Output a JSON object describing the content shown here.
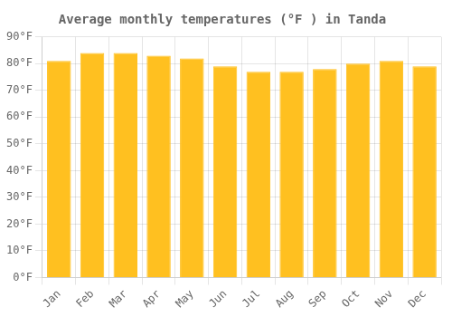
{
  "chart_data": {
    "type": "bar",
    "title": "Average monthly temperatures (°F ) in Tanda",
    "categories": [
      "Jan",
      "Feb",
      "Mar",
      "Apr",
      "May",
      "Jun",
      "Jul",
      "Aug",
      "Sep",
      "Oct",
      "Nov",
      "Dec"
    ],
    "values": [
      81,
      84,
      84,
      83,
      82,
      79,
      77,
      77,
      78,
      80,
      81,
      79
    ],
    "color": "#FFC020",
    "ylim": [
      0,
      90
    ],
    "yticks": [
      {
        "value": 0,
        "label": "0°F"
      },
      {
        "value": 10,
        "label": "10°F"
      },
      {
        "value": 20,
        "label": "20°F"
      },
      {
        "value": 30,
        "label": "30°F"
      },
      {
        "value": 40,
        "label": "40°F"
      },
      {
        "value": 50,
        "label": "50°F"
      },
      {
        "value": 60,
        "label": "60°F"
      },
      {
        "value": 70,
        "label": "70°F"
      },
      {
        "value": 80,
        "label": "80°F"
      },
      {
        "value": 90,
        "label": "90°F"
      }
    ],
    "grid": true
  }
}
